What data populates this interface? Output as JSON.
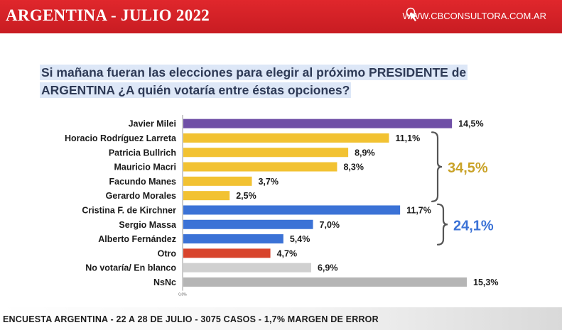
{
  "header": {
    "title": "ARGENTINA - JULIO 2022",
    "brand": "WWW.CBCONSULTORA.COM.AR",
    "brand_icon": "cursor-click-icon"
  },
  "question": {
    "text": "Si mañana fueran las elecciones para elegir al próximo PRESIDENTE de ARGENTINA ¿A quién votaría entre éstas opciones?"
  },
  "chart_data": {
    "type": "bar",
    "orientation": "horizontal",
    "categories": [
      "Javier Milei",
      "Horacio Rodríguez Larreta",
      "Patricia Bullrich",
      "Mauricio Macri",
      "Facundo Manes",
      "Gerardo Morales",
      "Cristina F. de Kirchner",
      "Sergio Massa",
      "Alberto Fernández",
      "Otro",
      "No votaría/ En blanco",
      "NsNc"
    ],
    "values": [
      14.5,
      11.1,
      8.9,
      8.3,
      3.7,
      2.5,
      11.7,
      7.0,
      5.4,
      4.7,
      6.9,
      15.3
    ],
    "value_labels": [
      "14,5%",
      "11,1%",
      "8,9%",
      "8,3%",
      "3,7%",
      "2,5%",
      "11,7%",
      "7,0%",
      "5,4%",
      "4,7%",
      "6,9%",
      "15,3%"
    ],
    "colors": [
      "#6f4fa6",
      "#f2c232",
      "#f2c232",
      "#f2c232",
      "#f2c232",
      "#f2c232",
      "#3b72d6",
      "#3b72d6",
      "#3b72d6",
      "#d8442c",
      "#d0d0d0",
      "#b5b5b5"
    ],
    "xlim": [
      0,
      15.3
    ],
    "axis_zero_label": "0,0%",
    "groups": [
      {
        "label": "34,5%",
        "color": "#c9a227",
        "first": 1,
        "last": 5
      },
      {
        "label": "24,1%",
        "color": "#3b72d6",
        "first": 6,
        "last": 8
      }
    ],
    "grid": false,
    "legend": "none"
  },
  "footer": {
    "text": "ENCUESTA ARGENTINA - 22 A 28  DE JULIO - 3075 CASOS - 1,7% MARGEN DE ERROR"
  }
}
